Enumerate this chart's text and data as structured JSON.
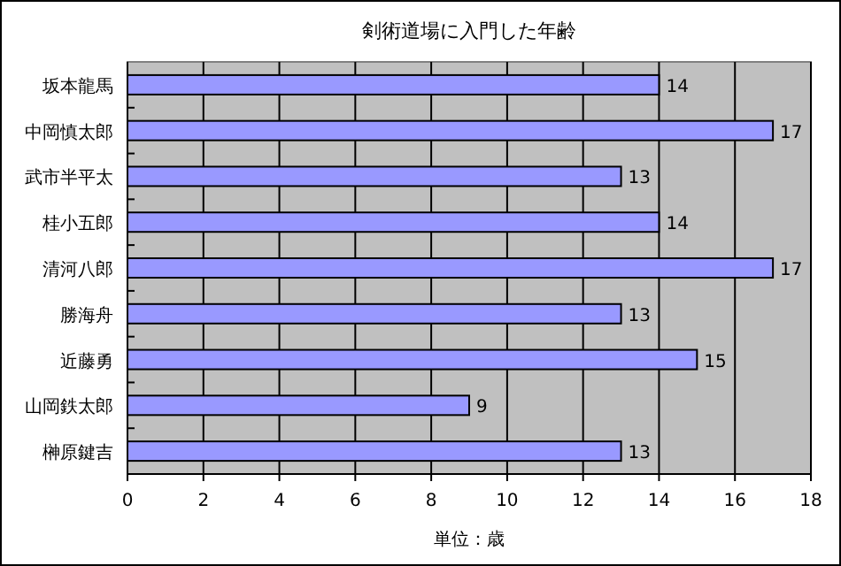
{
  "chart_data": {
    "type": "bar",
    "orientation": "horizontal",
    "title": "剣術道場に入門した年齢",
    "xlabel": "単位：歳",
    "categories": [
      "坂本龍馬",
      "中岡慎太郎",
      "武市半平太",
      "桂小五郎",
      "清河八郎",
      "勝海舟",
      "近藤勇",
      "山岡鉄太郎",
      "榊原鍵吉"
    ],
    "values": [
      14,
      17,
      13,
      14,
      17,
      13,
      15,
      9,
      13
    ],
    "color": "#9999ff",
    "xlim": [
      0,
      18
    ],
    "xticks": [
      0,
      2,
      4,
      6,
      8,
      10,
      12,
      14,
      16,
      18
    ],
    "grid": "x",
    "data_labels": true
  }
}
